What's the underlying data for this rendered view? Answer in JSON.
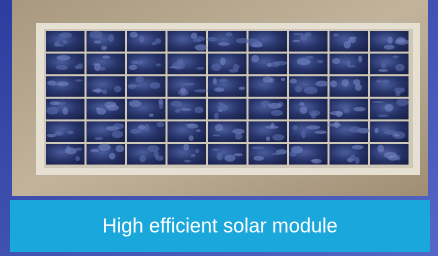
{
  "caption": "High efficient solar module"
}
